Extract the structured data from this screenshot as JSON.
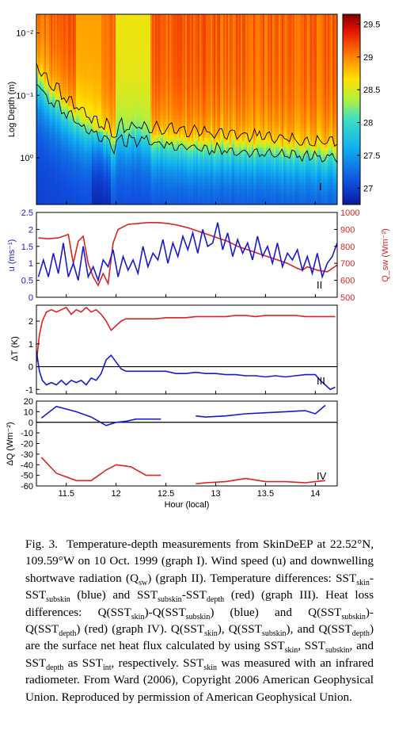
{
  "chart_data": [
    {
      "id": "I",
      "type": "heatmap",
      "panel_label": "I",
      "ylabel": "Log Depth (m)",
      "y_scale": "log",
      "y_ticks": [
        "10⁻²",
        "10⁻¹",
        "10⁰"
      ],
      "colorbar_ticks": [
        "29.5",
        "29",
        "28.5",
        "28",
        "27.5",
        "27"
      ],
      "colorbar_range": [
        26.75,
        29.65
      ],
      "contour_levels": [
        28.5,
        28.0
      ]
    },
    {
      "id": "II",
      "type": "line",
      "panel_label": "II",
      "ylabel_left": "u (ms⁻¹)",
      "ylabel_right": "Q_sw (Wm⁻²)",
      "ylim_left": [
        0,
        2.5
      ],
      "ylim_right": [
        500,
        1000
      ],
      "y_ticks_left": [
        "0",
        "0.5",
        "1",
        "1.5",
        "2",
        "2.5"
      ],
      "y_ticks_right": [
        "500",
        "600",
        "700",
        "800",
        "900",
        "1000"
      ],
      "series": [
        {
          "axis": "left",
          "color": "#1a1acc",
          "x": [
            11.22,
            11.27,
            11.32,
            11.37,
            11.42,
            11.47,
            11.52,
            11.57,
            11.62,
            11.67,
            11.72,
            11.77,
            11.82,
            11.87,
            11.92,
            11.97,
            12.02,
            12.07,
            12.12,
            12.17,
            12.22,
            12.27,
            12.32,
            12.37,
            12.42,
            12.47,
            12.52,
            12.57,
            12.62,
            12.67,
            12.72,
            12.77,
            12.82,
            12.87,
            12.92,
            12.97,
            13.02,
            13.07,
            13.12,
            13.17,
            13.22,
            13.27,
            13.32,
            13.37,
            13.42,
            13.47,
            13.52,
            13.57,
            13.62,
            13.67,
            13.72,
            13.77,
            13.82,
            13.87,
            13.92,
            13.97,
            14.02,
            14.07,
            14.12,
            14.17,
            14.22
          ],
          "values": [
            0.6,
            1.1,
            0.6,
            1.3,
            0.7,
            1.6,
            0.6,
            1.0,
            0.5,
            1.5,
            0.6,
            0.9,
            0.5,
            1.1,
            0.9,
            1.4,
            0.6,
            1.2,
            0.8,
            1.1,
            0.7,
            1.5,
            0.9,
            1.3,
            1.1,
            1.7,
            1.0,
            1.6,
            1.2,
            1.8,
            1.4,
            1.9,
            1.3,
            2.0,
            1.5,
            1.6,
            2.2,
            1.4,
            1.9,
            1.2,
            1.7,
            1.3,
            1.6,
            1.1,
            1.8,
            1.2,
            1.5,
            1.0,
            1.6,
            0.9,
            1.3,
            1.1,
            1.4,
            0.8,
            1.2,
            0.7,
            1.3,
            0.6,
            1.0,
            1.2,
            1.6
          ]
        },
        {
          "axis": "right",
          "color": "#dd2222",
          "x": [
            11.22,
            11.32,
            11.42,
            11.52,
            11.57,
            11.62,
            11.67,
            11.72,
            11.77,
            11.82,
            11.87,
            11.92,
            11.97,
            12.02,
            12.12,
            12.22,
            12.32,
            12.42,
            12.52,
            12.62,
            12.72,
            12.82,
            12.92,
            13.02,
            13.12,
            13.22,
            13.32,
            13.42,
            13.52,
            13.62,
            13.72,
            13.82,
            13.87,
            13.92,
            14.02,
            14.12,
            14.22
          ],
          "values": [
            850,
            845,
            850,
            870,
            700,
            830,
            860,
            700,
            620,
            570,
            640,
            580,
            820,
            900,
            930,
            935,
            940,
            940,
            935,
            925,
            910,
            890,
            870,
            850,
            830,
            800,
            780,
            760,
            740,
            720,
            700,
            670,
            660,
            680,
            660,
            650,
            690
          ]
        }
      ]
    },
    {
      "id": "III",
      "type": "line",
      "panel_label": "III",
      "ylabel": "ΔT (K)",
      "ylim": [
        -1.2,
        2.7
      ],
      "y_ticks": [
        "-1",
        "0",
        "1",
        "2"
      ],
      "series": [
        {
          "color": "#1a1acc",
          "x": [
            11.2,
            11.23,
            11.26,
            11.3,
            11.35,
            11.4,
            11.45,
            11.5,
            11.55,
            11.6,
            11.65,
            11.7,
            11.75,
            11.8,
            11.85,
            11.9,
            11.95,
            12.0,
            12.05,
            12.1,
            12.2,
            12.3,
            12.4,
            12.5,
            12.6,
            12.7,
            12.8,
            12.9,
            13.0,
            13.1,
            13.2,
            13.3,
            13.4,
            13.5,
            13.6,
            13.7,
            13.8,
            13.9,
            14.0,
            14.05,
            14.1,
            14.15,
            14.2
          ],
          "values": [
            0.7,
            -0.2,
            -0.6,
            -0.8,
            -0.7,
            -0.8,
            -0.6,
            -0.8,
            -0.6,
            -0.7,
            -0.6,
            -0.8,
            -0.5,
            -0.6,
            -0.3,
            0.3,
            0.5,
            0.2,
            -0.1,
            -0.2,
            -0.2,
            -0.2,
            -0.2,
            -0.2,
            -0.3,
            -0.3,
            -0.25,
            -0.3,
            -0.3,
            -0.35,
            -0.35,
            -0.4,
            -0.4,
            -0.45,
            -0.4,
            -0.45,
            -0.4,
            -0.35,
            -0.35,
            -0.6,
            -0.8,
            -1.0,
            -0.9
          ]
        },
        {
          "color": "#dd2222",
          "x": [
            11.2,
            11.23,
            11.26,
            11.3,
            11.35,
            11.4,
            11.45,
            11.5,
            11.55,
            11.6,
            11.65,
            11.7,
            11.75,
            11.8,
            11.85,
            11.9,
            11.95,
            12.0,
            12.05,
            12.1,
            12.2,
            12.3,
            12.4,
            12.5,
            12.6,
            12.7,
            12.8,
            12.9,
            13.0,
            13.1,
            13.2,
            13.3,
            13.4,
            13.5,
            13.6,
            13.7,
            13.8,
            13.9,
            14.0,
            14.1,
            14.2
          ],
          "values": [
            0.2,
            1.4,
            2.0,
            2.4,
            2.5,
            2.4,
            2.5,
            2.6,
            2.3,
            2.5,
            2.4,
            2.6,
            2.4,
            2.5,
            2.3,
            2.0,
            1.6,
            1.8,
            2.0,
            2.1,
            2.1,
            2.1,
            2.1,
            2.15,
            2.15,
            2.15,
            2.2,
            2.2,
            2.2,
            2.2,
            2.25,
            2.25,
            2.2,
            2.25,
            2.25,
            2.25,
            2.25,
            2.2,
            2.2,
            2.2,
            2.2
          ]
        }
      ]
    },
    {
      "id": "IV",
      "type": "line",
      "panel_label": "IV",
      "ylabel": "ΔQ (Wm⁻²)",
      "xlabel": "Hour (local)",
      "ylim": [
        -60,
        20
      ],
      "y_ticks": [
        "20",
        "10",
        "0",
        "-10",
        "-20",
        "-30",
        "-40",
        "-50",
        "-60"
      ],
      "x_ticks": [
        "11.5",
        "12",
        "12.5",
        "13",
        "13.5",
        "14"
      ],
      "xlim": [
        11.2,
        14.22
      ],
      "series": [
        {
          "color": "#1a1acc",
          "segments": [
            {
              "x": [
                11.25,
                11.4,
                11.6,
                11.75,
                11.9,
                12.0,
                12.1,
                12.2,
                12.3,
                12.45
              ],
              "values": [
                4,
                15,
                10,
                5,
                -3,
                0,
                1,
                3,
                3,
                3
              ]
            },
            {
              "x": [
                12.8,
                12.9,
                13.1,
                13.3,
                13.5,
                13.7,
                13.9,
                14.0,
                14.1
              ],
              "values": [
                6,
                5,
                6,
                8,
                9,
                10,
                11,
                8,
                16
              ]
            }
          ]
        },
        {
          "color": "#dd2222",
          "segments": [
            {
              "x": [
                11.25,
                11.4,
                11.6,
                11.75,
                11.9,
                12.0,
                12.15,
                12.3,
                12.45
              ],
              "values": [
                -33,
                -48,
                -55,
                -55,
                -45,
                -40,
                -42,
                -50,
                -50
              ]
            },
            {
              "x": [
                12.8,
                12.9,
                13.1,
                13.3,
                13.5,
                13.7,
                13.9,
                14.0,
                14.1
              ],
              "values": [
                -58,
                -57,
                -56,
                -53,
                -56,
                -56,
                -57,
                -56,
                -55
              ]
            }
          ]
        }
      ]
    }
  ],
  "caption": {
    "html": "Fig. 3. &nbsp;Temperature-depth measurements from SkinDeEP at 22.52°N, 109.59°W on 10 Oct. 1999 (graph I). Wind speed (u) and downwelling shortwave radiation (Q<sub>sw</sub>) (graph II). Temperature differences: SST<sub>skin</sub>-SST<sub>subskin</sub> (blue) and SST<sub>subskin</sub>-SST<sub>depth</sub> (red) (graph III). Heat loss differences: Q(SST<sub>skin</sub>)-Q(SST<sub>subskin</sub>) (blue) and Q(SST<sub>subskin</sub>)-Q(SST<sub>depth</sub>) (red) (graph IV). Q(SST<sub>skin</sub>), Q(SST<sub>subskin</sub>), and Q(SST<sub>depth</sub>) are the surface net heat flux calculated by using SST<sub>skin</sub>, SST<sub>subskin</sub>, and SST<sub>depth</sub> as SST<sub>int</sub>, respectively. SST<sub>skin</sub> was measured with an infrared radiometer. From Ward (2006), Copyright 2006 American Geophysical Union. Reproduced by permission of American Geophysical Union."
  }
}
